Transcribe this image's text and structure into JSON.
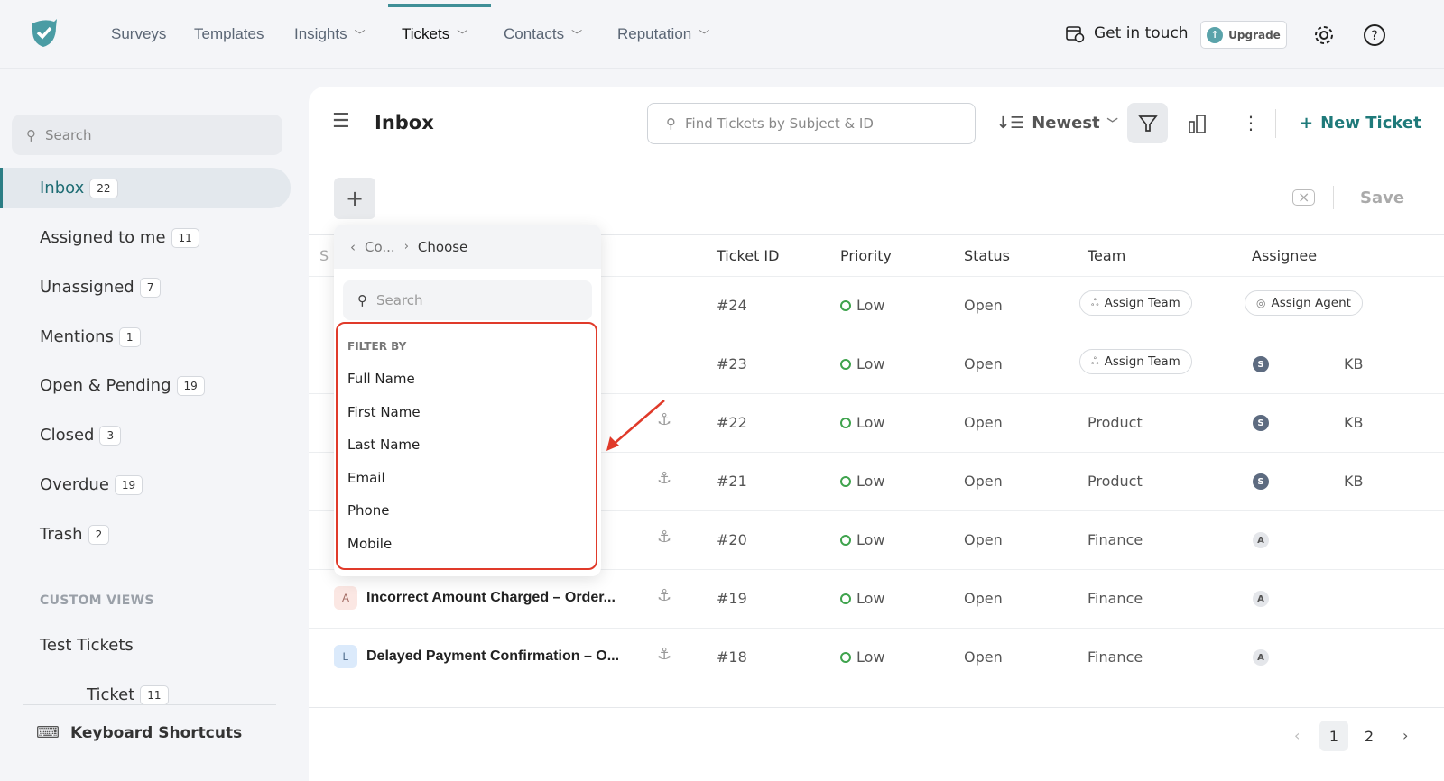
{
  "topnav": {
    "items": [
      {
        "label": "Surveys"
      },
      {
        "label": "Templates"
      },
      {
        "label": "Insights"
      },
      {
        "label": "Tickets"
      },
      {
        "label": "Contacts"
      },
      {
        "label": "Reputation"
      }
    ],
    "get_in_touch": "Get in touch",
    "upgrade": "Upgrade",
    "accent": "#3f8f97"
  },
  "sidebar": {
    "search_placeholder": "Search",
    "items": [
      {
        "label": "Inbox",
        "count": "22"
      },
      {
        "label": "Assigned to me",
        "count": "11"
      },
      {
        "label": "Unassigned",
        "count": "7"
      },
      {
        "label": "Mentions",
        "count": "1"
      },
      {
        "label": "Open & Pending",
        "count": "19"
      },
      {
        "label": "Closed",
        "count": "3"
      },
      {
        "label": "Overdue",
        "count": "19"
      },
      {
        "label": "Trash",
        "count": "2"
      }
    ],
    "custom_views_label": "CUSTOM VIEWS",
    "custom_views": [
      {
        "label": "Test Tickets"
      },
      {
        "label": "Ticket",
        "count": "11"
      }
    ],
    "keyboard_shortcuts": "Keyboard Shortcuts"
  },
  "main": {
    "title": "Inbox",
    "find_placeholder": "Find Tickets by Subject & ID",
    "sort": "Newest",
    "new_ticket": "New Ticket",
    "save": "Save",
    "columns": [
      "S",
      "Ticket ID",
      "Priority",
      "Status",
      "Team",
      "Assignee"
    ],
    "rows": [
      {
        "id": "#24",
        "priority": "Low",
        "status": "Open",
        "team": "Assign Team",
        "assignee": "Assign Agent"
      },
      {
        "id": "#23",
        "priority": "Low",
        "status": "Open",
        "team": "Assign Team",
        "assignee_initial": "S",
        "assignee": "KB"
      },
      {
        "id": "#22",
        "priority": "Low",
        "status": "Open",
        "team": "Product",
        "assignee_initial": "S",
        "assignee": "KB"
      },
      {
        "id": "#21",
        "priority": "Low",
        "status": "Open",
        "team": "Product",
        "assignee_initial": "S",
        "assignee": "KB"
      },
      {
        "id": "#20",
        "priority": "Low",
        "status": "Open",
        "team": "Finance",
        "assignee_initial": "A"
      },
      {
        "id": "#19",
        "priority": "Low",
        "status": "Open",
        "team": "Finance",
        "assignee_initial": "A",
        "subject_initial": "A",
        "subject": "Incorrect Amount Charged – Order..."
      },
      {
        "id": "#18",
        "priority": "Low",
        "status": "Open",
        "team": "Finance",
        "assignee_initial": "A",
        "subject_initial": "L",
        "subject": "Delayed Payment Confirmation – O..."
      }
    ],
    "pages": [
      "1",
      "2"
    ],
    "current_page": "1"
  },
  "dropdown": {
    "breadcrumb_parent": "Co...",
    "breadcrumb_current": "Choose",
    "search_placeholder": "Search",
    "section": "FILTER BY",
    "options": [
      "Full Name",
      "First Name",
      "Last Name",
      "Email",
      "Phone",
      "Mobile"
    ],
    "highlight_color": "#e03a2a"
  }
}
